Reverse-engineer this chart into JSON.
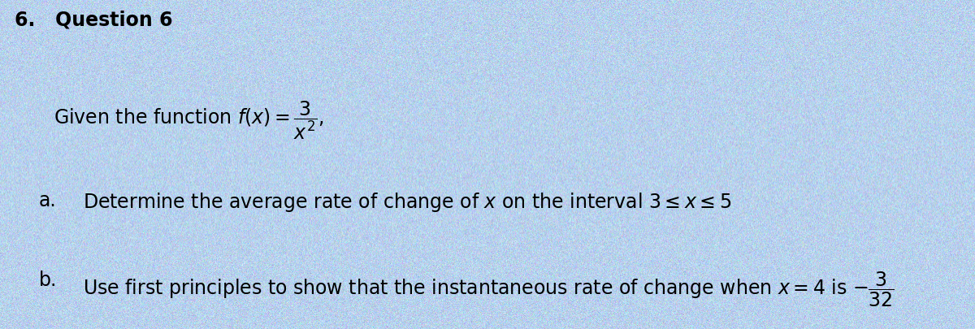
{
  "background_color": "#b8cfe8",
  "header_text": "6.   Question 6",
  "line1": "Given the function $f(x) = \\dfrac{3}{x^2},$",
  "line2_label": "a.",
  "line2_text": "Determine the average rate of change of $x$ on the interval $3 \\leq x \\leq 5$",
  "line3_label": "b.",
  "line3_text": "Use first principles to show that the instantaneous rate of change when $x = 4$ is $-\\dfrac{3}{32}$",
  "text_color": "#000000",
  "header_fontsize": 17,
  "body_fontsize": 17,
  "figsize": [
    12.0,
    4.06
  ],
  "dpi": 100
}
